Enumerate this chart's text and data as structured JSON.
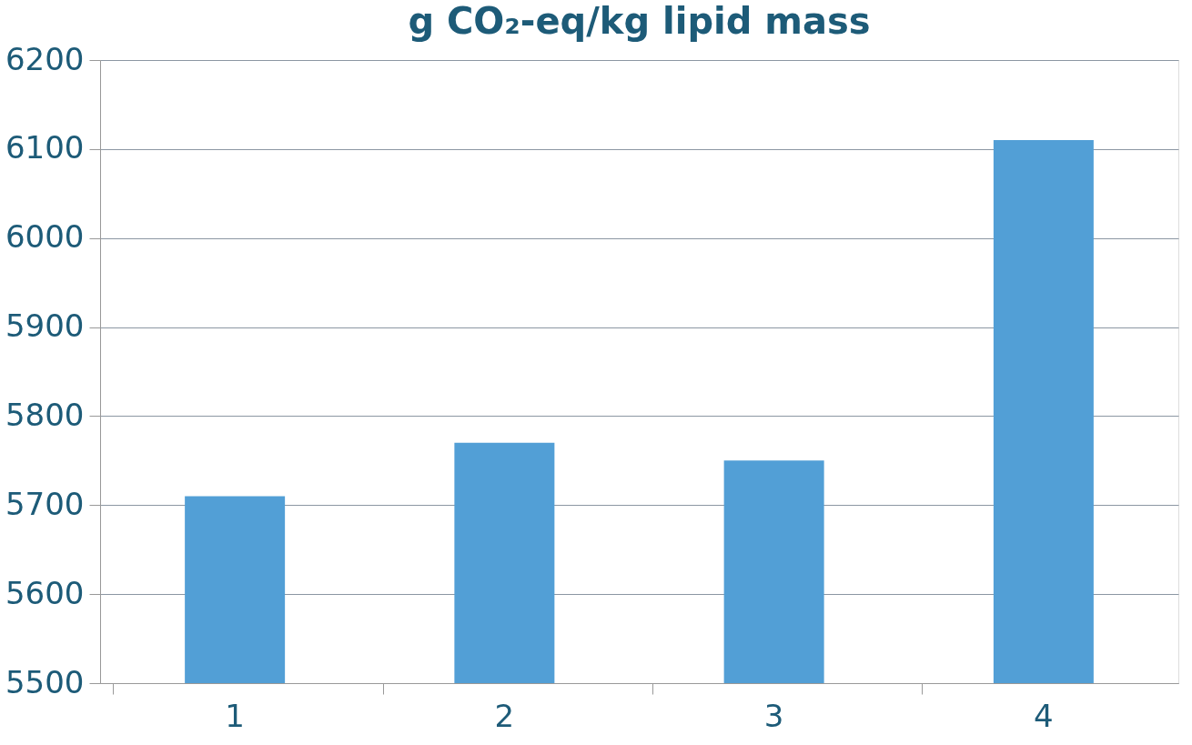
{
  "chart_data": {
    "type": "bar",
    "title": "g CO₂-eq/kg lipid mass",
    "categories": [
      "1",
      "2",
      "3",
      "4"
    ],
    "values": [
      5710,
      5770,
      5750,
      6110
    ],
    "color": "#529fd6",
    "ylim": [
      5500,
      6200
    ],
    "yticks": [
      5500,
      5600,
      5700,
      5800,
      5900,
      6000,
      6100,
      6200
    ],
    "grid": "y"
  }
}
